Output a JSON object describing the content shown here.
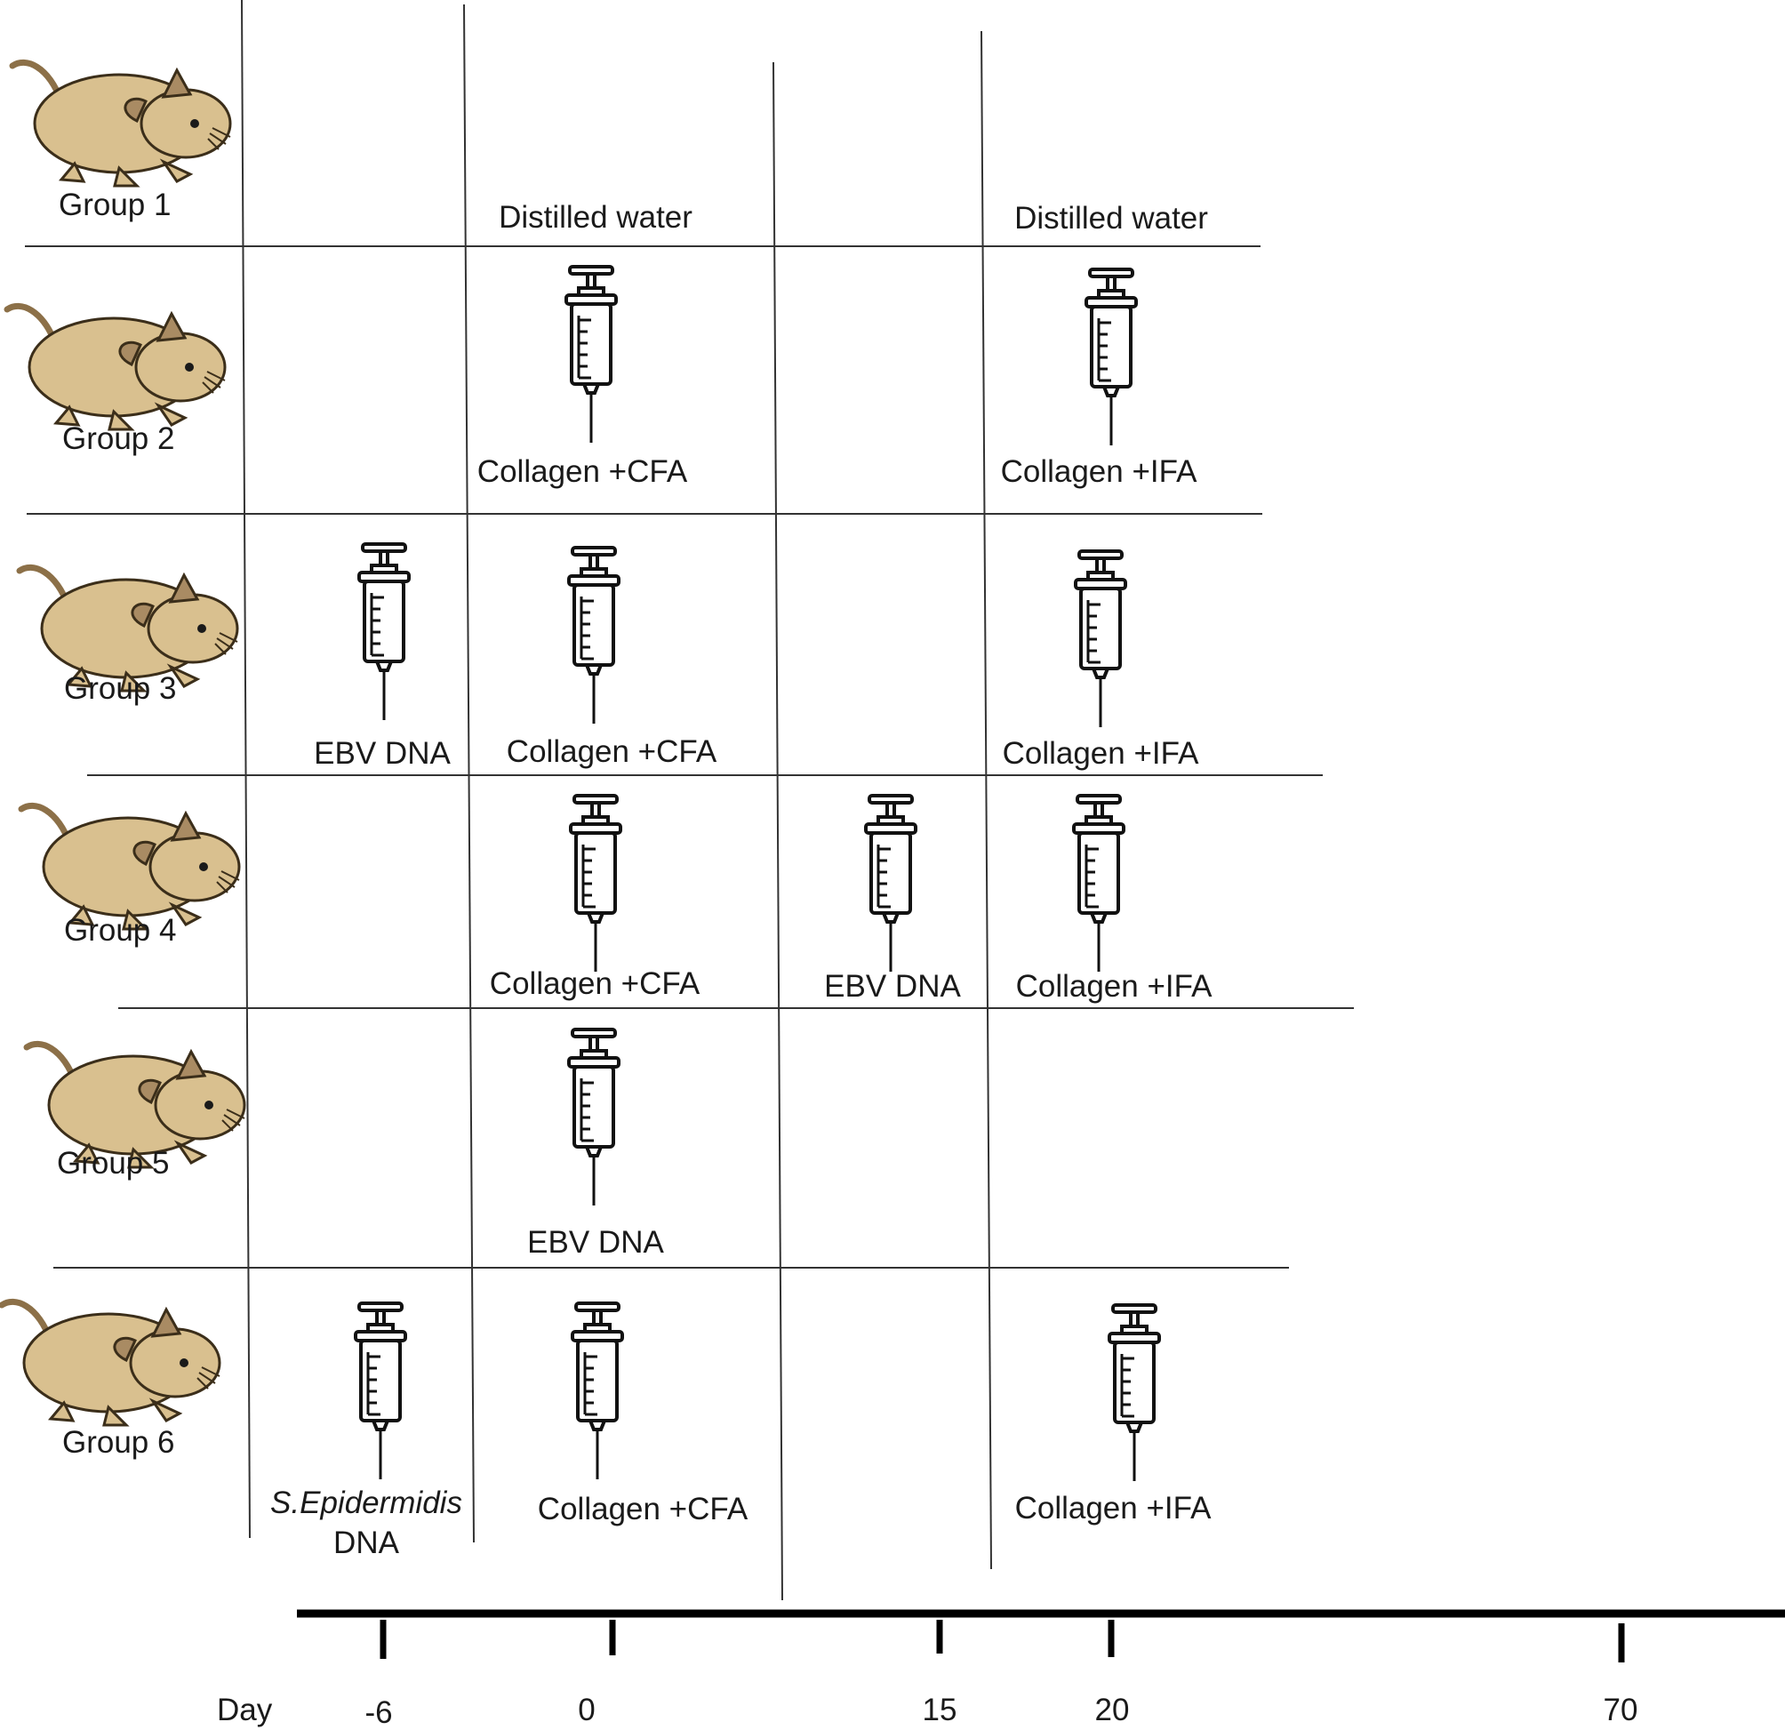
{
  "groups": [
    {
      "label": "Group 1"
    },
    {
      "label": "Group 2"
    },
    {
      "label": "Group 3"
    },
    {
      "label": "Group 4"
    },
    {
      "label": "Group 5"
    },
    {
      "label": "Group 6"
    }
  ],
  "treatments": {
    "g1_day0": "Distilled water",
    "g1_day20": "Distilled water",
    "g2_day0": "Collagen +CFA",
    "g2_day20": "Collagen +IFA",
    "g3_dayminus6": "EBV DNA",
    "g3_day0": "Collagen +CFA",
    "g3_day20": "Collagen +IFA",
    "g4_day0": "Collagen +CFA",
    "g4_day15": "EBV DNA",
    "g4_day20": "Collagen +IFA",
    "g5_day0": "EBV DNA",
    "g6_dayminus6_line1": "S.Epidermidis",
    "g6_dayminus6_line2": "DNA",
    "g6_day0": "Collagen +CFA",
    "g6_day20": "Collagen +IFA"
  },
  "timeline": {
    "unit_label": "Day",
    "ticks": [
      "-6",
      "0",
      "15",
      "20",
      "70"
    ]
  },
  "colors": {
    "mouse_body": "#d9c08f",
    "mouse_ear": "#a98b63",
    "mouse_tail": "#8c7048",
    "line": "#333333",
    "axis": "#000000"
  },
  "icons": [
    "mouse-icon",
    "syringe-icon"
  ]
}
